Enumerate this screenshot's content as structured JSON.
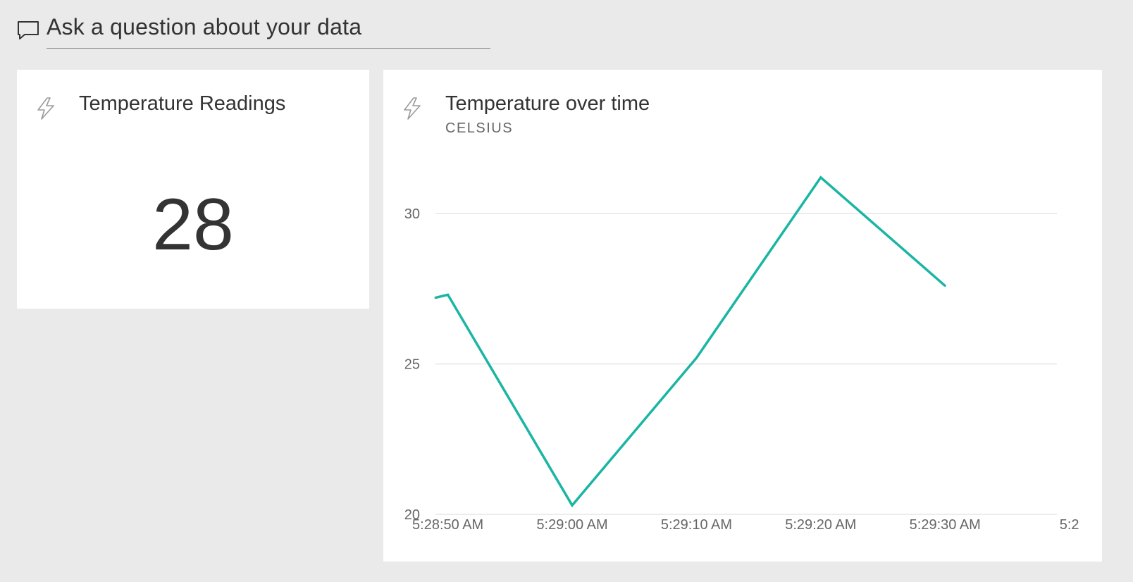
{
  "qna": {
    "icon": "chat-bubble-icon",
    "placeholder": "Ask a question about your data"
  },
  "card_tile": {
    "icon": "lightning-bolt-icon",
    "title": "Temperature Readings",
    "value": "28"
  },
  "chart_tile": {
    "icon": "lightning-bolt-icon",
    "title": "Temperature over time",
    "subtitle": "CELSIUS"
  },
  "colors": {
    "background": "#eaeaea",
    "tile": "#ffffff",
    "line": "#1ab5a3",
    "grid": "#e6e6e6"
  },
  "chart_data": {
    "type": "line",
    "title": "Temperature over time",
    "subtitle": "CELSIUS",
    "xlabel": "",
    "ylabel": "",
    "grid": true,
    "legend": "none",
    "ylim": [
      20,
      31.5
    ],
    "xlim": [
      "5:28:49 AM",
      "5:29:39 AM"
    ],
    "y_ticks": [
      "30",
      "25",
      "20"
    ],
    "x_ticks": [
      "5:28:50 AM",
      "5:29:00 AM",
      "5:29:10 AM",
      "5:29:20 AM",
      "5:29:30 AM",
      "5:2"
    ],
    "series": [
      {
        "x": [
          "5:28:49 AM",
          "5:28:50 AM",
          "5:29:00 AM",
          "5:29:10 AM",
          "5:29:20 AM",
          "5:29:30 AM"
        ],
        "values": [
          27.2,
          27.3,
          20.3,
          25.2,
          31.2,
          27.6
        ]
      }
    ]
  }
}
